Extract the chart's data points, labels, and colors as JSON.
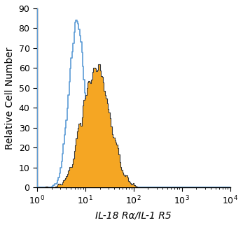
{
  "title": "",
  "xlabel": "IL-18 Rα/IL-1 R5",
  "ylabel": "Relative Cell Number",
  "xlim_log": [
    1,
    10000
  ],
  "ylim": [
    0,
    90
  ],
  "yticks": [
    0,
    10,
    20,
    30,
    40,
    50,
    60,
    70,
    80,
    90
  ],
  "blue_color": "#5b9bd5",
  "orange_color": "#f5a623",
  "dark_outline_color": "#3a3a3a",
  "blue_log_mean": 0.82,
  "blue_log_std": 0.16,
  "blue_peak_y": 84,
  "orange_log_mean": 1.22,
  "orange_log_std": 0.28,
  "orange_peak_y": 62,
  "n_bins": 200,
  "xlabel_fontsize": 10,
  "ylabel_fontsize": 10,
  "tick_fontsize": 9,
  "left_spine_y_start": 50
}
